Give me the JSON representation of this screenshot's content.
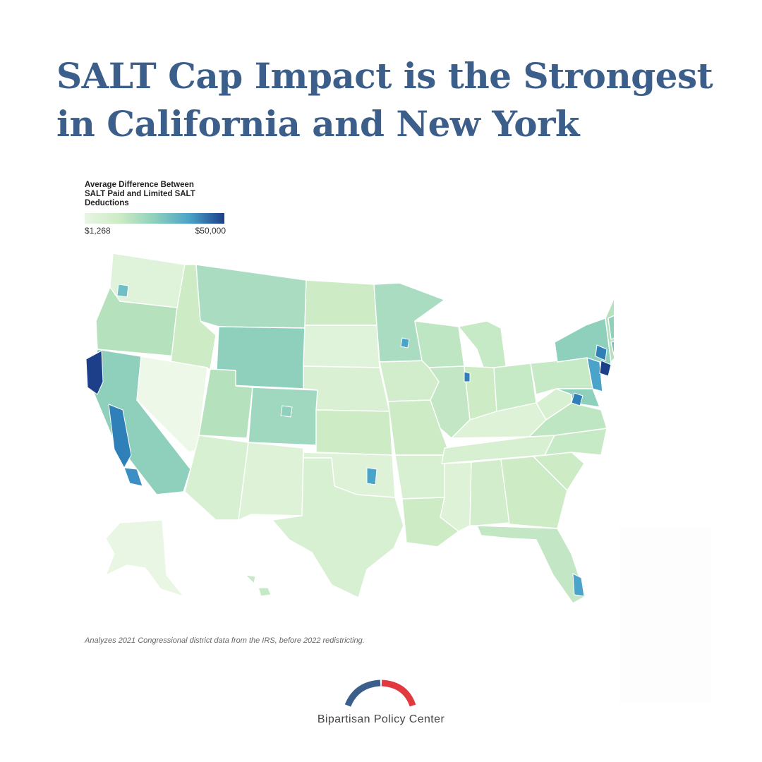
{
  "title": {
    "line1": "SALT Cap Impact is the Strongest",
    "line2": "in California and New York"
  },
  "legend": {
    "title_line1": "Average Difference Between",
    "title_line2": "SALT Paid and Limited SALT",
    "title_line3": "Deductions",
    "min_label": "$1,268",
    "max_label": "$50,000",
    "scale_colors": [
      "#e8f6e3",
      "#ccebc4",
      "#8fd0bd",
      "#4aa3c8",
      "#1d3f8a"
    ]
  },
  "map": {
    "region": "United States congressional districts",
    "highest_impact_states": [
      "California",
      "New York"
    ]
  },
  "note": "Analyzes 2021 Congressional district data from the IRS, before 2022 redistricting.",
  "brand": {
    "name": "Bipartisan Policy Center",
    "left_arc_color": "#3b5f8a",
    "right_arc_color": "#e03a3e"
  }
}
